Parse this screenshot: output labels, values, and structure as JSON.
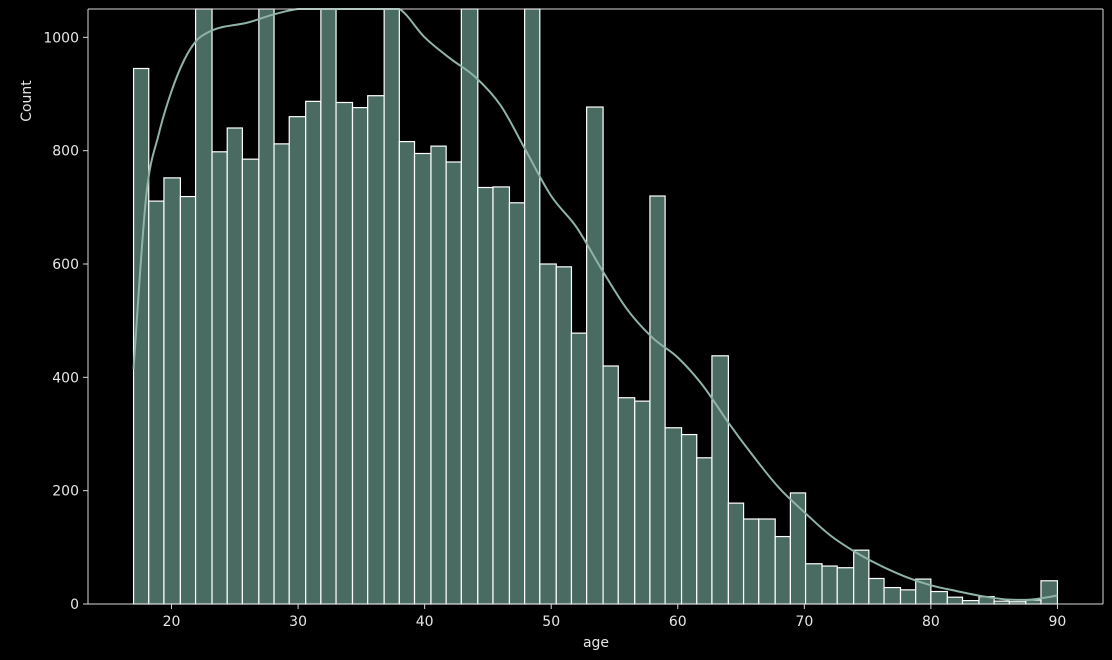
{
  "chart_data": {
    "type": "bar",
    "subtype": "histogram-with-kde",
    "title": "",
    "xlabel": "age",
    "ylabel": "Count",
    "xlim": [
      13.4,
      93.6
    ],
    "ylim": [
      0,
      1050
    ],
    "x_ticks": [
      20,
      30,
      40,
      50,
      60,
      70,
      80,
      90
    ],
    "y_ticks": [
      0,
      200,
      400,
      600,
      800,
      1000
    ],
    "grid": false,
    "legend": "none",
    "colors": {
      "background": "#000000",
      "bar_fill": "#4a6b62",
      "bar_edge": "#ffffff",
      "kde_line": "#8fb3a8",
      "axis": "#d9d9d9",
      "text": "#e6e6e6"
    },
    "bin_edges": [
      17.0,
      18.2,
      19.4,
      20.7,
      21.9,
      23.2,
      24.4,
      25.6,
      26.9,
      28.1,
      29.3,
      30.6,
      31.8,
      33.0,
      34.3,
      35.5,
      36.8,
      38.0,
      39.2,
      40.5,
      41.7,
      42.9,
      44.2,
      45.4,
      46.7,
      47.9,
      49.1,
      50.4,
      51.6,
      52.8,
      54.1,
      55.3,
      56.6,
      57.8,
      59.0,
      60.3,
      61.5,
      62.7,
      64.0,
      65.2,
      66.4,
      67.7,
      68.9,
      70.1,
      71.4,
      72.6,
      73.9,
      75.1,
      76.3,
      77.6,
      78.8,
      80.0,
      81.3,
      82.5,
      83.8,
      85.0,
      86.2,
      87.5,
      88.7,
      90.0
    ],
    "counts": [
      945,
      711,
      752,
      719,
      1150,
      798,
      840,
      785,
      1150,
      812,
      860,
      887,
      1150,
      885,
      876,
      897,
      1150,
      816,
      795,
      808,
      780,
      1150,
      735,
      736,
      708,
      1150,
      600,
      595,
      478,
      877,
      420,
      364,
      358,
      720,
      311,
      299,
      258,
      438,
      178,
      150,
      150,
      119,
      196,
      71,
      67,
      64,
      95,
      45,
      29,
      25,
      44,
      22,
      12,
      6,
      13,
      5,
      4,
      7,
      41
    ],
    "kde": {
      "x": [
        17,
        18,
        19,
        20,
        21,
        22,
        23,
        24,
        26,
        28,
        30,
        32,
        34,
        36,
        38,
        40,
        42,
        44,
        46,
        48,
        50,
        52,
        54,
        56,
        58,
        60,
        62,
        64,
        66,
        68,
        70,
        72,
        74,
        76,
        78,
        80,
        82,
        84,
        86,
        88,
        90
      ],
      "y": [
        415,
        720,
        830,
        905,
        960,
        995,
        1010,
        1018,
        1026,
        1040,
        1053,
        1062,
        1064,
        1063,
        1056,
        1000,
        963,
        930,
        880,
        800,
        720,
        665,
        590,
        520,
        470,
        435,
        385,
        320,
        260,
        205,
        162,
        122,
        92,
        68,
        48,
        33,
        23,
        14,
        8,
        8,
        15
      ]
    }
  }
}
